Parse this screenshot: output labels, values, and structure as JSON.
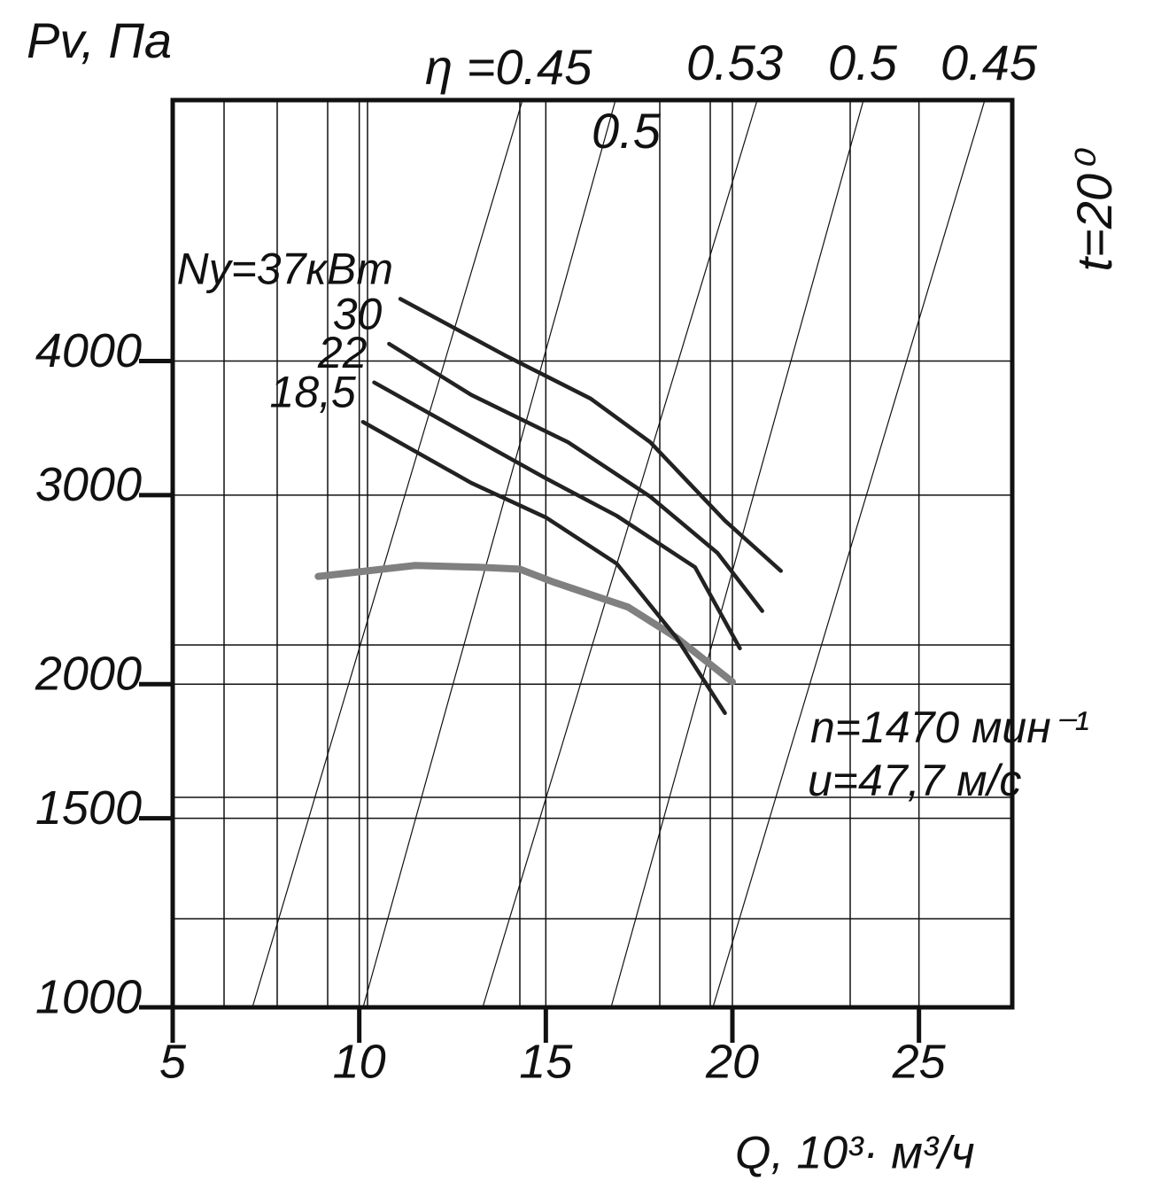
{
  "chart_data": {
    "type": "line",
    "title": "Pv, Па",
    "x_label": "Q, 10³· м³/ч",
    "xlim": [
      5,
      27.5
    ],
    "xticks": [
      5,
      10,
      15,
      20,
      25
    ],
    "ylim": [
      1000,
      7000
    ],
    "yticks": [
      1000,
      1500,
      2000,
      3000,
      4000
    ],
    "y_scale": "log",
    "grid": true,
    "annotations": {
      "eta": "η =0.45",
      "eta2": "0.5",
      "eta3": "0.53",
      "eta4": "0.5",
      "eta5": "0.45",
      "temp": "t=20⁰",
      "speed": "n=1470 мин⁻¹",
      "velocity": "u=47,7 м/с"
    },
    "series": [
      {
        "name": "Pv",
        "color": "#808080",
        "x": [
          8.9,
          11.5,
          13.2,
          14.3,
          15.2,
          17.2,
          18.5,
          20
        ],
        "values": [
          2520,
          2580,
          2570,
          2560,
          2490,
          2360,
          2210,
          2010
        ]
      },
      {
        "name": "Ny=37кВт",
        "color": "#222222",
        "x": [
          11.1,
          13.9,
          16.2,
          17.8,
          19.8,
          21.3
        ],
        "values": [
          4570,
          4050,
          3690,
          3360,
          2840,
          2550
        ]
      },
      {
        "name": "30",
        "color": "#222222",
        "x": [
          10.8,
          13,
          15.6,
          17.8,
          19.6,
          20.8
        ],
        "values": [
          4150,
          3720,
          3360,
          2990,
          2650,
          2340
        ]
      },
      {
        "name": "22",
        "color": "#222222",
        "x": [
          10.4,
          13,
          15,
          16.9,
          19,
          20.2
        ],
        "values": [
          3820,
          3400,
          3110,
          2870,
          2570,
          2160
        ]
      },
      {
        "name": "18,5",
        "color": "#222222",
        "x": [
          10.1,
          13,
          15,
          16.9,
          18.5,
          19.8
        ],
        "values": [
          3510,
          3080,
          2860,
          2590,
          2210,
          1880
        ]
      }
    ]
  }
}
